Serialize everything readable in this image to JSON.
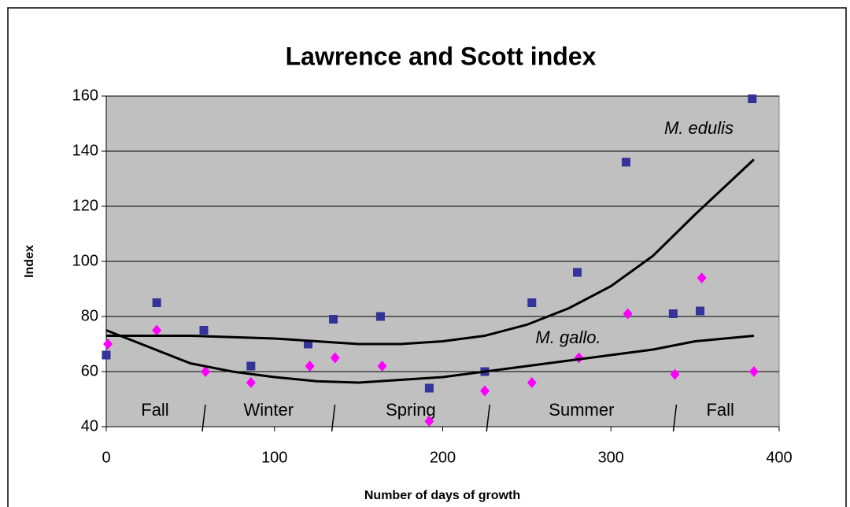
{
  "chart_data": {
    "type": "scatter",
    "title": "Lawrence and Scott index",
    "x_label": "Number of days of growth",
    "y_label": "Index",
    "xlim": [
      0,
      400
    ],
    "xticks": [
      0,
      100,
      200,
      300,
      400
    ],
    "ylim": [
      40,
      160
    ],
    "yticks": [
      40,
      60,
      80,
      100,
      120,
      140,
      160
    ],
    "grid": true,
    "plot_background": "#c0c0c0",
    "series": [
      {
        "color": "#333399",
        "marker": "square",
        "x": [
          0,
          30,
          58,
          86,
          120,
          135,
          163,
          192,
          225,
          253,
          280,
          309,
          337,
          353,
          384
        ],
        "values": [
          66,
          85,
          75,
          62,
          70,
          79,
          80,
          54,
          60,
          85,
          96,
          136,
          81,
          82,
          159
        ]
      },
      {
        "color": "#ff00ff",
        "marker": "diamond",
        "x": [
          1,
          30,
          59,
          86,
          121,
          136,
          164,
          192,
          225,
          253,
          281,
          310,
          338,
          354,
          385
        ],
        "values": [
          70,
          75,
          60,
          56,
          62,
          65,
          62,
          42,
          53,
          56,
          65,
          81,
          59,
          94,
          60
        ]
      },
      {
        "name": "M. edulis",
        "color": "#000000",
        "marker": "line",
        "x": [
          0,
          25,
          50,
          75,
          100,
          125,
          150,
          175,
          200,
          225,
          250,
          275,
          300,
          325,
          350,
          385
        ],
        "values": [
          73,
          73,
          73,
          72.5,
          72,
          71,
          70,
          70,
          71,
          73,
          77,
          83,
          91,
          102,
          117,
          137
        ]
      },
      {
        "name": "M. gallo.",
        "color": "#000000",
        "marker": "line",
        "x": [
          0,
          25,
          50,
          75,
          100,
          125,
          150,
          175,
          200,
          225,
          250,
          275,
          300,
          325,
          350,
          385
        ],
        "values": [
          75,
          69,
          63,
          60,
          58,
          56.5,
          56,
          57,
          58,
          60,
          62,
          64,
          66,
          68,
          71,
          73
        ]
      }
    ],
    "seasons": [
      "Fall",
      "Winter",
      "Spring",
      "Summer",
      "Fall"
    ],
    "season_dividers": [
      58,
      135,
      227,
      338
    ]
  }
}
